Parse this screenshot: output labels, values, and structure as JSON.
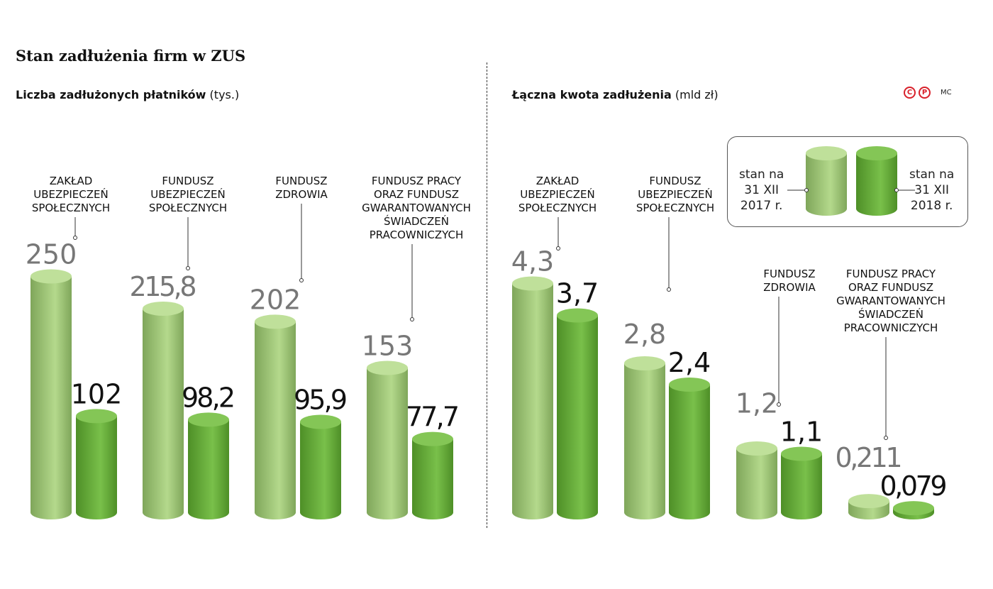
{
  "title": "Stan zadłużenia firm w ZUS",
  "credit": {
    "c": "C",
    "p": "P",
    "author": "MC"
  },
  "legend": {
    "series_2017": [
      "stan na",
      "31 XII",
      "2017 r."
    ],
    "series_2018": [
      "stan na",
      "31 XII",
      "2018 r."
    ]
  },
  "colors": {
    "series_2017": "#a8cf7a",
    "series_2018": "#6cb33f"
  },
  "chart_data": [
    {
      "type": "bar",
      "title_bold": "Liczba zadłużonych płatników",
      "title_unit": "(tys.)",
      "series": [
        {
          "name": "stan na 31 XII 2017 r.",
          "values": [
            250,
            215.8,
            202,
            153
          ],
          "labels": [
            "250",
            "215,8",
            "202",
            "153"
          ]
        },
        {
          "name": "stan na 31 XII 2018 r.",
          "values": [
            102,
            98.2,
            95.9,
            77.7
          ],
          "labels": [
            "102",
            "98,2",
            "95,9",
            "77,7"
          ]
        }
      ],
      "categories": [
        [
          "ZAKŁAD",
          "UBEZPIECZEŃ",
          "SPOŁECZNYCH"
        ],
        [
          "FUNDUSZ",
          "UBEZPIECZEŃ",
          "SPOŁECZNYCH"
        ],
        [
          "FUNDUSZ",
          "ZDROWIA"
        ],
        [
          "FUNDUSZ PRACY",
          "ORAZ FUNDUSZ",
          "GWARANTOWANYCH",
          "ŚWIADCZEŃ",
          "PRACOWNICZYCH"
        ]
      ]
    },
    {
      "type": "bar",
      "title_bold": "Łączna kwota zadłużenia",
      "title_unit": "(mld zł)",
      "series": [
        {
          "name": "stan na 31 XII 2017 r.",
          "values": [
            4.3,
            2.8,
            1.2,
            0.211
          ],
          "labels": [
            "4,3",
            "2,8",
            "1,2",
            "0,211"
          ]
        },
        {
          "name": "stan na 31 XII 2018 r.",
          "values": [
            3.7,
            2.4,
            1.1,
            0.079
          ],
          "labels": [
            "3,7",
            "2,4",
            "1,1",
            "0,079"
          ]
        }
      ],
      "categories": [
        [
          "ZAKŁAD",
          "UBEZPIECZEŃ",
          "SPOŁECZNYCH"
        ],
        [
          "FUNDUSZ",
          "UBEZPIECZEŃ",
          "SPOŁECZNYCH"
        ],
        [
          "FUNDUSZ",
          "ZDROWIA"
        ],
        [
          "FUNDUSZ PRACY",
          "ORAZ FUNDUSZ",
          "GWARANTOWANYCH",
          "ŚWIADCZEŃ",
          "PRACOWNICZYCH"
        ]
      ]
    }
  ]
}
